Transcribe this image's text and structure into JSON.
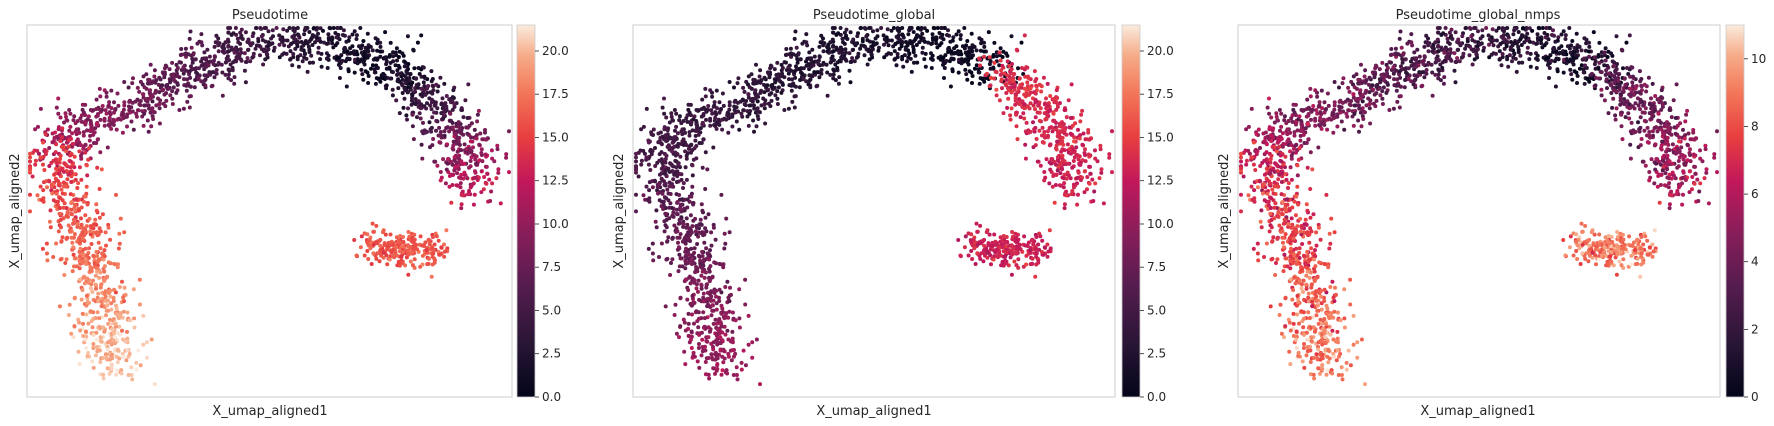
{
  "panels": [
    {
      "title": "Pseudotime",
      "xlabel": "X_umap_aligned1",
      "ylabel": "X_umap_aligned2",
      "colorbar": {
        "vmin": 0,
        "vmax": 21.5,
        "ticks": [
          0.0,
          2.5,
          5.0,
          7.5,
          10.0,
          12.5,
          15.0,
          17.5,
          20.0
        ],
        "tick_labels": [
          "0.0",
          "2.5",
          "5.0",
          "7.5",
          "10.0",
          "12.5",
          "15.0",
          "17.5",
          "20.0"
        ]
      }
    },
    {
      "title": "Pseudotime_global",
      "xlabel": "X_umap_aligned1",
      "ylabel": "X_umap_aligned2",
      "colorbar": {
        "vmin": 0,
        "vmax": 21.5,
        "ticks": [
          0.0,
          2.5,
          5.0,
          7.5,
          10.0,
          12.5,
          15.0,
          17.5,
          20.0
        ],
        "tick_labels": [
          "0.0",
          "2.5",
          "5.0",
          "7.5",
          "10.0",
          "12.5",
          "15.0",
          "17.5",
          "20.0"
        ]
      }
    },
    {
      "title": "Pseudotime_global_nmps",
      "xlabel": "X_umap_aligned1",
      "ylabel": "X_umap_aligned2",
      "colorbar": {
        "vmin": 0,
        "vmax": 11,
        "ticks": [
          0,
          2,
          4,
          6,
          8,
          10
        ],
        "tick_labels": [
          "0",
          "2",
          "4",
          "6",
          "8",
          "10"
        ]
      }
    }
  ],
  "chart_data": [
    {
      "type": "scatter",
      "title": "Pseudotime",
      "xlabel": "X_umap_aligned1",
      "ylabel": "X_umap_aligned2",
      "colormap": "rocket",
      "color_range": [
        0,
        21.5
      ],
      "grid": false,
      "axis_ticks": false,
      "colorbar": "right",
      "structures": [
        {
          "x": [
            -0.95,
            -0.7,
            -0.4,
            -0.1,
            0.25,
            0.55
          ],
          "y": [
            0.35,
            0.55,
            0.75,
            0.95,
            0.97,
            0.8
          ],
          "value_start": 11,
          "value_end": 0.5
        },
        {
          "x": [
            0.55,
            0.75,
            0.85,
            0.9
          ],
          "y": [
            0.8,
            0.6,
            0.35,
            0.15
          ],
          "value_start": 1,
          "value_end": 13
        },
        {
          "x": [
            -0.95,
            -0.85,
            -0.78,
            -0.72,
            -0.68
          ],
          "y": [
            0.35,
            0.0,
            -0.3,
            -0.65,
            -0.9
          ],
          "value_start": 14,
          "value_end": 21
        },
        {
          "x": [
            0.45,
            0.55,
            0.65,
            0.72
          ],
          "y": [
            -0.18,
            -0.22,
            -0.2,
            -0.26
          ],
          "value_start": 16,
          "value_end": 16
        }
      ]
    },
    {
      "type": "scatter",
      "title": "Pseudotime_global",
      "xlabel": "X_umap_aligned1",
      "ylabel": "X_umap_aligned2",
      "colormap": "rocket",
      "color_range": [
        0,
        21.5
      ],
      "grid": false,
      "axis_ticks": false,
      "colorbar": "right",
      "structures": [
        {
          "x": [
            -0.95,
            -0.7,
            -0.4,
            -0.1,
            0.25,
            0.55
          ],
          "y": [
            0.35,
            0.55,
            0.75,
            0.95,
            0.97,
            0.8
          ],
          "value_start": 5,
          "value_end": 0.5
        },
        {
          "x": [
            0.55,
            0.75,
            0.85,
            0.9
          ],
          "y": [
            0.8,
            0.6,
            0.35,
            0.15
          ],
          "value_start": 14,
          "value_end": 13
        },
        {
          "x": [
            -0.95,
            -0.85,
            -0.78,
            -0.72,
            -0.68
          ],
          "y": [
            0.35,
            0.0,
            -0.3,
            -0.65,
            -0.9
          ],
          "value_start": 5,
          "value_end": 11
        },
        {
          "x": [
            0.45,
            0.55,
            0.65,
            0.72
          ],
          "y": [
            -0.18,
            -0.22,
            -0.2,
            -0.26
          ],
          "value_start": 13,
          "value_end": 13
        }
      ]
    },
    {
      "type": "scatter",
      "title": "Pseudotime_global_nmps",
      "xlabel": "X_umap_aligned1",
      "ylabel": "X_umap_aligned2",
      "colormap": "rocket",
      "color_range": [
        0,
        11
      ],
      "grid": false,
      "axis_ticks": false,
      "colorbar": "right",
      "structures": [
        {
          "x": [
            -0.95,
            -0.7,
            -0.4,
            -0.1,
            0.25,
            0.55
          ],
          "y": [
            0.35,
            0.55,
            0.75,
            0.95,
            0.97,
            0.8
          ],
          "value_start": 5.5,
          "value_end": 0.5
        },
        {
          "x": [
            0.55,
            0.75,
            0.85,
            0.9
          ],
          "y": [
            0.8,
            0.6,
            0.35,
            0.15
          ],
          "value_start": 3,
          "value_end": 6
        },
        {
          "x": [
            -0.95,
            -0.85,
            -0.78,
            -0.72,
            -0.68
          ],
          "y": [
            0.35,
            0.0,
            -0.3,
            -0.65,
            -0.9
          ],
          "value_start": 6.5,
          "value_end": 9.5
        },
        {
          "x": [
            0.45,
            0.55,
            0.65,
            0.72
          ],
          "y": [
            -0.18,
            -0.22,
            -0.2,
            -0.26
          ],
          "value_start": 9,
          "value_end": 9
        }
      ]
    }
  ]
}
